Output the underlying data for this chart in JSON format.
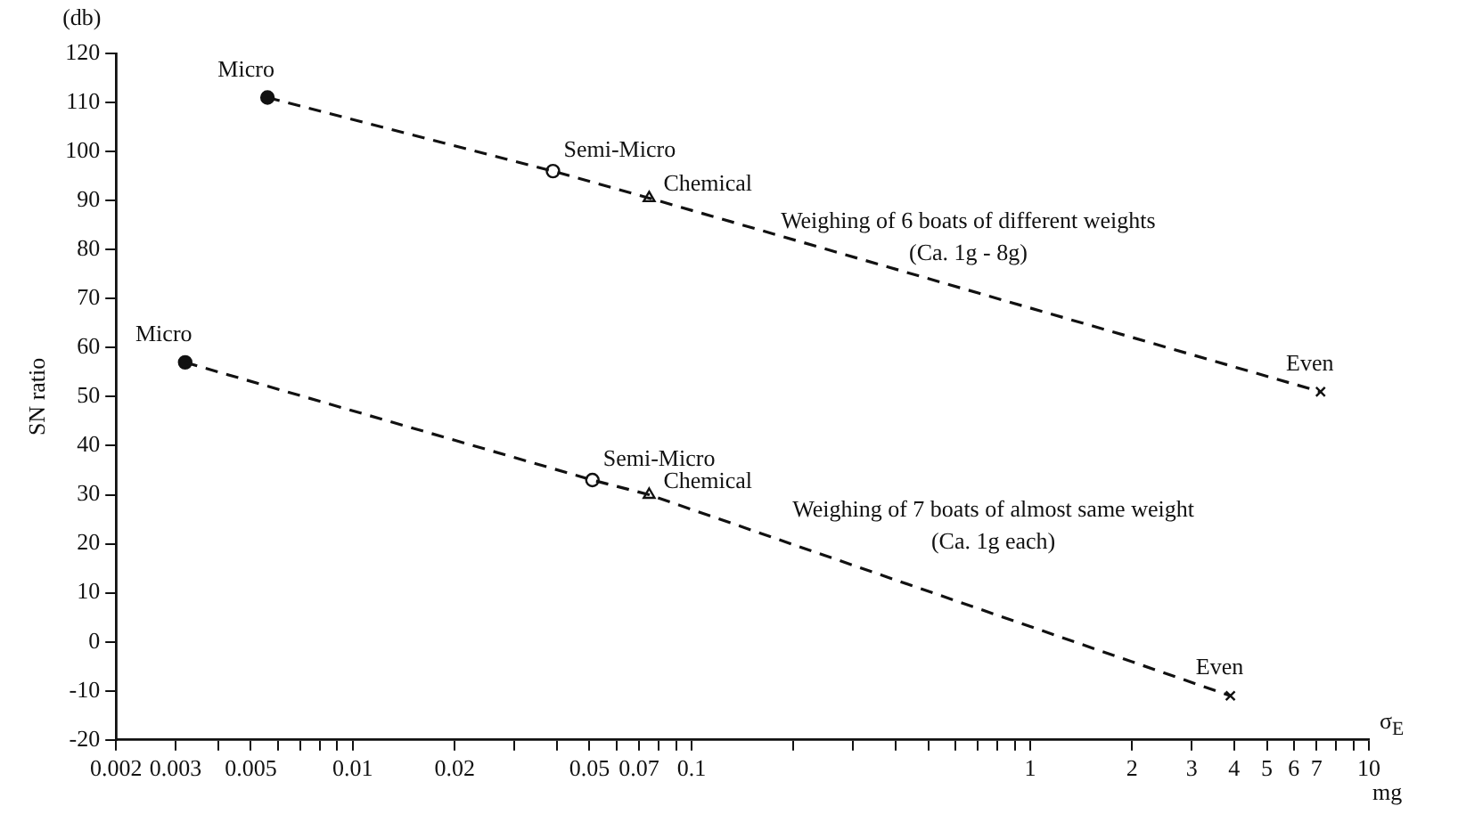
{
  "chart_data": {
    "type": "line",
    "ylabel": "SN ratio",
    "xlabel": "σ$_{E}$",
    "log": "x",
    "grid": false,
    "legend": false,
    "xlim": [
      0.002,
      10
    ],
    "ylim": [
      -20,
      120
    ],
    "xticks": [
      0.002,
      0.003,
      {
        "value": 0.004,
        "label": null
      },
      0.005,
      {
        "value": 0.006,
        "label": null
      },
      {
        "value": 0.007,
        "label": null
      },
      {
        "value": 0.008,
        "label": null
      },
      {
        "value": 0.009,
        "label": null
      },
      0.01,
      0.02,
      {
        "value": 0.03,
        "label": null
      },
      {
        "value": 0.04,
        "label": null
      },
      0.05,
      {
        "value": 0.06,
        "label": null
      },
      0.07,
      {
        "value": 0.08,
        "label": null
      },
      {
        "value": 0.09,
        "label": null
      },
      0.1,
      {
        "value": 0.2,
        "label": null
      },
      {
        "value": 0.3,
        "label": null
      },
      {
        "value": 0.4,
        "label": null
      },
      {
        "value": 0.5,
        "label": null
      },
      {
        "value": 0.6,
        "label": null
      },
      {
        "value": 0.7,
        "label": null
      },
      {
        "value": 0.8,
        "label": null
      },
      {
        "value": 0.9,
        "label": null
      },
      1,
      2,
      3,
      4,
      5,
      6,
      7,
      {
        "value": 8,
        "label": null
      },
      {
        "value": 9,
        "label": null
      },
      10
    ],
    "yticks": [
      -20,
      -10,
      0,
      10,
      20,
      30,
      40,
      50,
      60,
      70,
      80,
      90,
      100,
      110,
      120
    ],
    "series": [
      {
        "color": "#111111",
        "marker": "none",
        "line_style": "dashed",
        "x": [
          0.0056,
          0.039,
          0.075,
          7.2
        ],
        "values": [
          111,
          96,
          90.5,
          51
        ]
      },
      {
        "color": "#111111",
        "marker": "none",
        "line_style": "dashed",
        "x": [
          0.0032,
          0.051,
          0.075,
          3.9
        ],
        "values": [
          57,
          33,
          30,
          -11
        ]
      },
      {
        "type": "scatter",
        "name": "Micro",
        "color": "#111111",
        "marker": "circle",
        "x": [
          0.0056,
          0.0032
        ],
        "values": [
          111,
          57
        ]
      },
      {
        "type": "scatter",
        "name": "Semi-Micro",
        "color": "#ffffff",
        "marker": "circle",
        "x": [
          0.039,
          0.051
        ],
        "values": [
          96,
          33
        ]
      },
      {
        "type": "scatter",
        "name": "Chemical",
        "color": "#ffffff",
        "marker": "triangle",
        "x": [
          0.075,
          0.075
        ],
        "values": [
          90.5,
          30
        ]
      },
      {
        "type": "scatter",
        "name": "Even",
        "color": "#111111",
        "marker": "cross",
        "x": [
          7.2,
          3.9
        ],
        "values": [
          51,
          -11
        ]
      }
    ],
    "annotations": [
      "(db)",
      "mg",
      "Weighing of 6 boats of different weights\n(Ca. 1g - 8g)",
      "Weighing of 7 boats of almost same weight\n(Ca. 1g each)"
    ]
  }
}
